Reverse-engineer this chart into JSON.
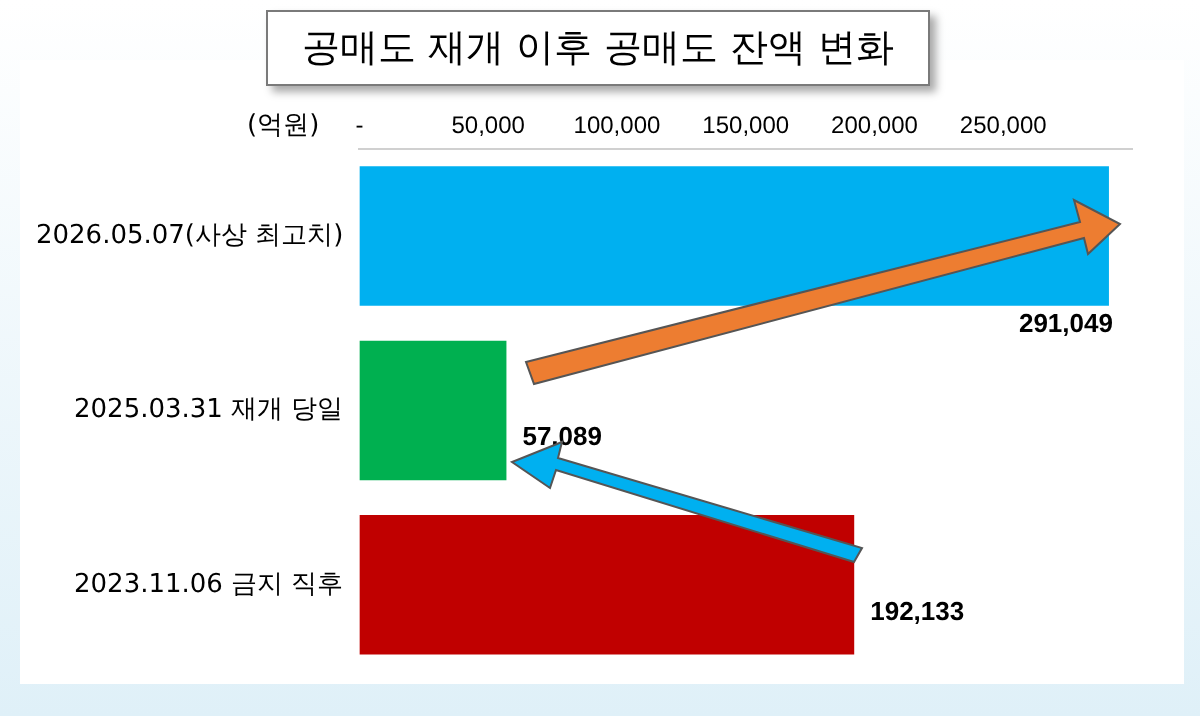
{
  "chart_data": {
    "type": "bar",
    "orientation": "horizontal",
    "title": "공매도 재개 이후 공매도 잔액 변화",
    "xlabel": "(억원)",
    "categories": [
      "2026.05.07(사상 최고치)",
      "2025.03.31 재개 당일",
      "2023.11.06 금지 직후"
    ],
    "values": [
      291049,
      57089,
      192133
    ],
    "colors": [
      "#00b0f0",
      "#00b050",
      "#c00000"
    ],
    "xlim": [
      0,
      300000
    ],
    "xticks": [
      {
        "value": 0,
        "label": "-"
      },
      {
        "value": 50000,
        "label": "50,000"
      },
      {
        "value": 100000,
        "label": "100,000"
      },
      {
        "value": 150000,
        "label": "150,000"
      },
      {
        "value": 200000,
        "label": "200,000"
      },
      {
        "value": 250000,
        "label": "250,000"
      }
    ],
    "value_labels": [
      "291,049",
      "57,089",
      "192,133"
    ],
    "grid": false,
    "legend": false
  }
}
